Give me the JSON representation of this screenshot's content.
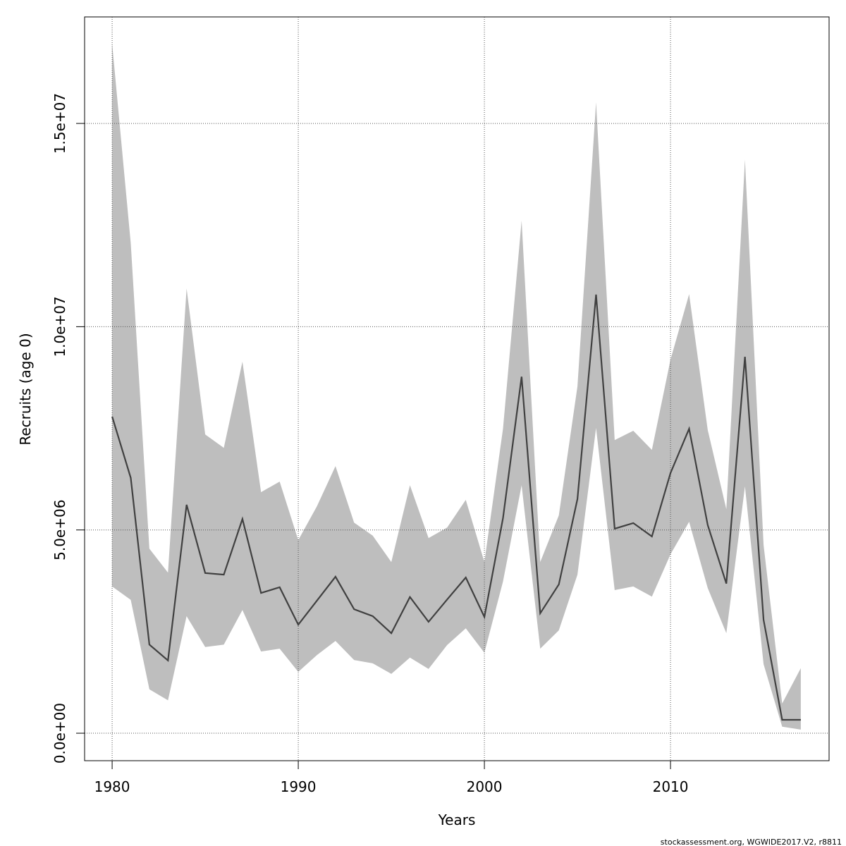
{
  "chart_data": {
    "type": "line",
    "xlabel": "Years",
    "ylabel": "Recruits (age 0)",
    "footer": "stockassessment.org, WGWIDE2017.V2, r8811",
    "x": [
      1980,
      1981,
      1982,
      1983,
      1984,
      1985,
      1986,
      1987,
      1988,
      1989,
      1990,
      1991,
      1992,
      1993,
      1994,
      1995,
      1996,
      1997,
      1998,
      1999,
      2000,
      2001,
      2002,
      2003,
      2004,
      2005,
      2006,
      2007,
      2008,
      2009,
      2010,
      2011,
      2012,
      2013,
      2014,
      2015,
      2016,
      2017
    ],
    "series": [
      {
        "color": "#404040",
        "values": [
          7790000,
          6280000,
          2180000,
          1790000,
          5620000,
          3940000,
          3900000,
          5270000,
          3450000,
          3590000,
          2670000,
          3260000,
          3850000,
          3050000,
          2880000,
          2460000,
          3350000,
          2740000,
          3290000,
          3830000,
          2860000,
          5290000,
          8770000,
          2950000,
          3660000,
          5760000,
          10790000,
          5030000,
          5170000,
          4840000,
          6400000,
          7490000,
          5120000,
          3680000,
          9260000,
          2790000,
          330000,
          330000
        ]
      }
    ],
    "band": {
      "color": "#bebebe",
      "upper": [
        16960000,
        12050000,
        4540000,
        3950000,
        10940000,
        7350000,
        7020000,
        9140000,
        5930000,
        6190000,
        4750000,
        5580000,
        6570000,
        5180000,
        4860000,
        4210000,
        6100000,
        4800000,
        5060000,
        5740000,
        4210000,
        7490000,
        12610000,
        4210000,
        5360000,
        8530000,
        15520000,
        7210000,
        7440000,
        6970000,
        9190000,
        10800000,
        7460000,
        5510000,
        14110000,
        4630000,
        730000,
        1600000
      ],
      "lower": [
        3610000,
        3280000,
        1080000,
        810000,
        2880000,
        2120000,
        2180000,
        3030000,
        2010000,
        2080000,
        1510000,
        1920000,
        2270000,
        1800000,
        1720000,
        1460000,
        1860000,
        1580000,
        2170000,
        2580000,
        1980000,
        3730000,
        6100000,
        2080000,
        2530000,
        3900000,
        7510000,
        3520000,
        3610000,
        3360000,
        4400000,
        5200000,
        3570000,
        2460000,
        6070000,
        1700000,
        160000,
        90000
      ]
    },
    "xlim": [
      1978.52,
      2018.52
    ],
    "xticks": [
      1980,
      1990,
      2000,
      2010
    ],
    "ylim": [
      -676000,
      17620000
    ],
    "yticks": [
      {
        "value": 0,
        "label": "0.0e+00"
      },
      {
        "value": 5000000,
        "label": "5.0e+06"
      },
      {
        "value": 10000000,
        "label": "1.0e+07"
      },
      {
        "value": 15000000,
        "label": "1.5e+07"
      }
    ],
    "grid": true
  }
}
